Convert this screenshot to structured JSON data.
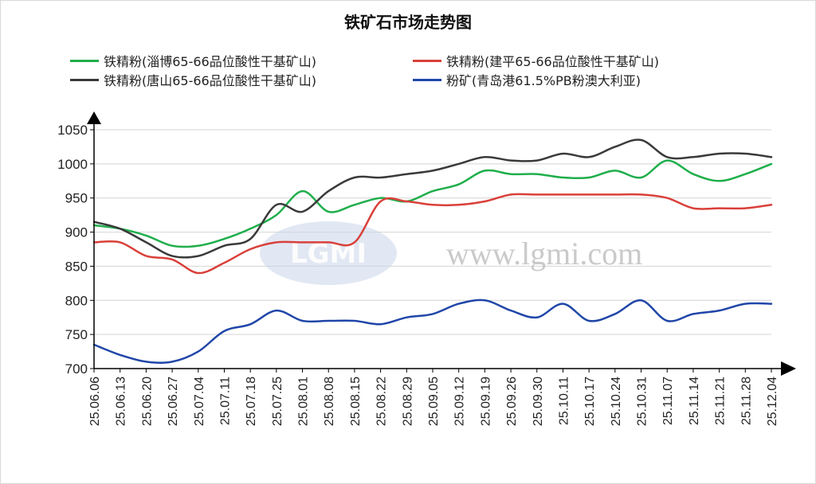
{
  "chart_data": {
    "type": "line",
    "title": "铁矿石市场走势图",
    "xlabel": "",
    "ylabel": "",
    "ylim": [
      700,
      1050
    ],
    "yticks": [
      700,
      750,
      800,
      850,
      900,
      950,
      1000,
      1050
    ],
    "categories": [
      "25.06.06",
      "25.06.13",
      "25.06.20",
      "25.06.27",
      "25.07.04",
      "25.07.11",
      "25.07.18",
      "25.07.25",
      "25.08.01",
      "25.08.08",
      "25.08.15",
      "25.08.22",
      "25.08.29",
      "25.09.05",
      "25.09.12",
      "25.09.19",
      "25.09.26",
      "25.09.30",
      "25.10.11",
      "25.10.17",
      "25.10.24",
      "25.10.31",
      "25.11.07",
      "25.11.14",
      "25.11.21",
      "25.11.28",
      "25.12.04"
    ],
    "grid": true,
    "legend_position": "top",
    "series": [
      {
        "name": "铁精粉(淄博65-66品位酸性干基矿山)",
        "color": "#1fae4b",
        "values": [
          910,
          905,
          895,
          880,
          880,
          890,
          905,
          925,
          960,
          930,
          940,
          950,
          945,
          960,
          970,
          990,
          985,
          985,
          980,
          980,
          990,
          980,
          1005,
          985,
          975,
          985,
          1000
        ]
      },
      {
        "name": "铁精粉(建平65-66品位酸性干基矿山)",
        "color": "#d9403a",
        "values": [
          885,
          885,
          865,
          860,
          840,
          855,
          875,
          885,
          885,
          885,
          885,
          945,
          945,
          940,
          940,
          945,
          955,
          955,
          955,
          955,
          955,
          955,
          950,
          935,
          935,
          935,
          940
        ]
      },
      {
        "name": "铁精粉(唐山65-66品位酸性干基矿山)",
        "color": "#3a3a3a",
        "values": [
          915,
          905,
          885,
          865,
          865,
          880,
          890,
          940,
          930,
          960,
          980,
          980,
          985,
          990,
          1000,
          1010,
          1005,
          1005,
          1015,
          1010,
          1025,
          1035,
          1010,
          1010,
          1015,
          1015,
          1010
        ]
      },
      {
        "name": "粉矿(青岛港61.5%PB粉澳大利亚)",
        "color": "#2046a8",
        "values": [
          735,
          720,
          710,
          710,
          725,
          755,
          765,
          785,
          770,
          770,
          770,
          765,
          775,
          780,
          795,
          800,
          785,
          775,
          795,
          770,
          780,
          800,
          770,
          780,
          785,
          795,
          795
        ]
      }
    ],
    "watermark": {
      "logo": "LGMI",
      "site": "www.lgmi.com"
    }
  }
}
